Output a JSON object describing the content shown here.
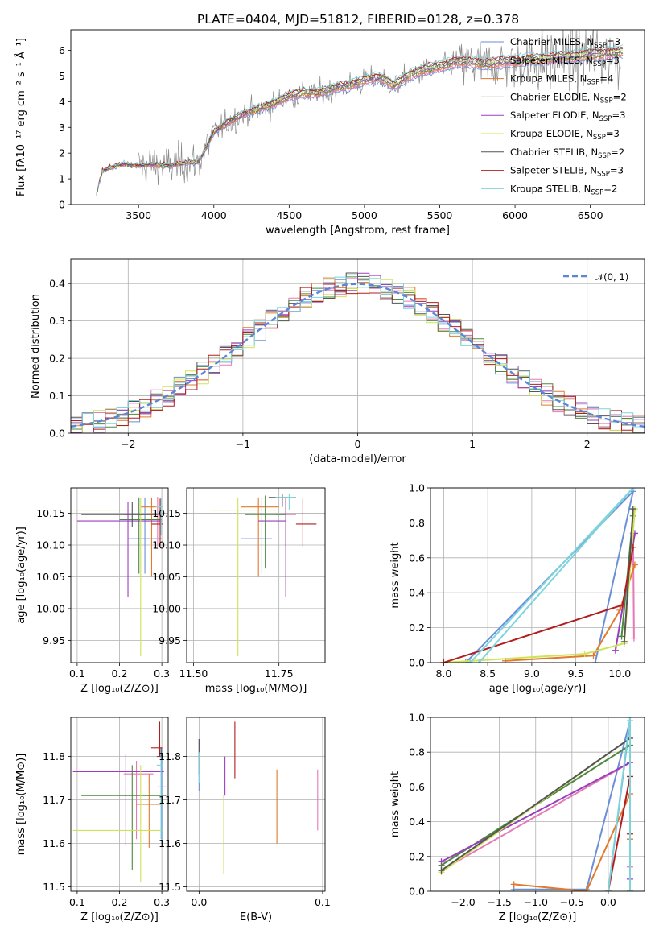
{
  "figure": {
    "title": "PLATE=0404, MJD=51812, FIBERID=0128, z=0.378"
  },
  "models": [
    {
      "key": "chabrier_miles",
      "label": "Chabrier MILES, N",
      "nssp": "3",
      "color": "#6a8fd6"
    },
    {
      "key": "salpeter_miles",
      "label": "Salpeter MILES, N",
      "nssp": "3",
      "color": "#e67ab5"
    },
    {
      "key": "kroupa_miles",
      "label": "Kroupa MILES, N",
      "nssp": "4",
      "color": "#e07a2c"
    },
    {
      "key": "chabrier_elodie",
      "label": "Chabrier ELODIE, N",
      "nssp": "2",
      "color": "#4a8a3c"
    },
    {
      "key": "salpeter_elodie",
      "label": "Salpeter ELODIE, N",
      "nssp": "3",
      "color": "#9a3ec0"
    },
    {
      "key": "kroupa_elodie",
      "label": "Kroupa ELODIE, N",
      "nssp": "3",
      "color": "#cfe356"
    },
    {
      "key": "chabrier_stelib",
      "label": "Chabrier STELIB, N",
      "nssp": "2",
      "color": "#555555"
    },
    {
      "key": "salpeter_stelib",
      "label": "Salpeter STELIB, N",
      "nssp": "3",
      "color": "#b01e1e"
    },
    {
      "key": "kroupa_stelib",
      "label": "Kroupa STELIB, N",
      "nssp": "2",
      "color": "#7fd4dc"
    }
  ],
  "legend_subscript": "SSP",
  "gaussian_label": "𝒩(0, 1)",
  "chart_data": [
    {
      "id": "spectrum",
      "type": "line",
      "xlabel": "wavelength [Angstrom, rest frame]",
      "ylabel": "Flux [fλ10⁻¹⁷ erg cm⁻² s⁻¹ Å⁻¹]",
      "xlim": [
        3050,
        6860
      ],
      "ylim": [
        0,
        6.8
      ],
      "xticks": [
        "3500",
        "4000",
        "4500",
        "5000",
        "5500",
        "6000",
        "6500"
      ],
      "yticks": [
        "0",
        "1",
        "2",
        "3",
        "4",
        "5",
        "6"
      ],
      "model_continuum": {
        "x": [
          3220,
          3260,
          3300,
          3400,
          3500,
          3600,
          3700,
          3800,
          3900,
          4000,
          4100,
          4200,
          4300,
          4400,
          4500,
          4600,
          4700,
          4800,
          4900,
          5000,
          5100,
          5200,
          5300,
          5400,
          5500,
          5600,
          5700,
          5800,
          5900,
          6000,
          6100,
          6200,
          6300,
          6400,
          6500,
          6600,
          6700
        ],
        "y": [
          0.4,
          1.3,
          1.4,
          1.55,
          1.5,
          1.55,
          1.5,
          1.6,
          1.65,
          2.8,
          3.2,
          3.5,
          3.7,
          3.9,
          4.2,
          4.3,
          4.3,
          4.5,
          4.6,
          4.8,
          4.9,
          4.6,
          5.0,
          5.2,
          5.3,
          5.5,
          5.5,
          5.4,
          5.5,
          5.5,
          5.6,
          5.6,
          5.7,
          5.7,
          5.8,
          5.8,
          5.9
        ]
      },
      "legend": "top-right",
      "grid": false
    },
    {
      "id": "residual_histogram",
      "type": "line",
      "xlabel": "(data-model)/error",
      "ylabel": "Normed distribution",
      "xlim": [
        -2.5,
        2.5
      ],
      "ylim": [
        0,
        0.465
      ],
      "xticks": [
        "−2",
        "−1",
        "0",
        "1",
        "2"
      ],
      "yticks": [
        "0.0",
        "0.1",
        "0.2",
        "0.3",
        "0.4"
      ],
      "gaussian": {
        "mean": 0,
        "sigma": 1
      },
      "bin_width": 0.1,
      "legend": "top-right",
      "grid": true
    },
    {
      "id": "age_vs_Z",
      "type": "scatter",
      "xlabel": "Z [log₁₀(Z/Z⊙)]",
      "ylabel": "age  [log₁₀(age/yr)]",
      "xlim": [
        0.085,
        0.315
      ],
      "ylim": [
        9.915,
        10.19
      ],
      "xticks": [
        "0.1",
        "0.2",
        "0.3"
      ],
      "yticks": [
        "9.95",
        "10.00",
        "10.05",
        "10.10",
        "10.15"
      ],
      "series": [
        {
          "model": "chabrier_miles",
          "x": 0.26,
          "xerr": [
            0.04,
            0.04
          ],
          "y": 10.11,
          "yerr": [
            0.055,
            0.065
          ]
        },
        {
          "model": "salpeter_miles",
          "x": 0.29,
          "xerr": [
            0.08,
            0.01
          ],
          "y": 10.148,
          "yerr": [
            0.05,
            0.028
          ]
        },
        {
          "model": "kroupa_miles",
          "x": 0.276,
          "xerr": [
            0.025,
            0.01
          ],
          "y": 10.16,
          "yerr": [
            0.11,
            0.015
          ]
        },
        {
          "model": "chabrier_elodie",
          "x": 0.246,
          "xerr": [
            0.046,
            0.054
          ],
          "y": 10.14,
          "yerr": [
            0.085,
            0.035
          ]
        },
        {
          "model": "salpeter_elodie",
          "x": 0.22,
          "xerr": [
            0.12,
            0.08
          ],
          "y": 10.138,
          "yerr": [
            0.12,
            0.03
          ]
        },
        {
          "model": "kroupa_elodie",
          "x": 0.25,
          "xerr": [
            0.16,
            0.05
          ],
          "y": 10.155,
          "yerr": [
            0.23,
            0.02
          ]
        },
        {
          "model": "chabrier_stelib",
          "x": 0.23,
          "xerr": [
            0.12,
            0.06
          ],
          "y": 10.148,
          "yerr": [
            0.02,
            0.02
          ]
        },
        {
          "model": "salpeter_stelib",
          "x": 0.296,
          "xerr": [
            0.02,
            0.006
          ],
          "y": 10.133,
          "yerr": [
            0.035,
            0.04
          ]
        },
        {
          "model": "kroupa_stelib",
          "x": 0.298,
          "xerr": [
            0.012,
            0.004
          ],
          "y": 10.16,
          "yerr": [
            0.045,
            0.015
          ]
        }
      ]
    },
    {
      "id": "age_vs_mass",
      "type": "scatter",
      "xlabel": "mass [log₁₀(M/M⊙)]",
      "ylabel": "",
      "xlim": [
        11.48,
        11.885
      ],
      "ylim": [
        9.915,
        10.19
      ],
      "xticks": [
        "11.50",
        "11.75"
      ],
      "yticks": [
        "9.95",
        "10.00",
        "10.05",
        "10.10",
        "10.15"
      ],
      "series": [
        {
          "model": "chabrier_miles",
          "x": 11.7,
          "xerr": [
            0.06,
            0.03
          ],
          "y": 10.11,
          "yerr": [
            0.055,
            0.065
          ]
        },
        {
          "model": "salpeter_miles",
          "x": 11.77,
          "xerr": [
            0.03,
            0.03
          ],
          "y": 10.148,
          "yerr": [
            0.05,
            0.028
          ]
        },
        {
          "model": "kroupa_miles",
          "x": 11.69,
          "xerr": [
            0.05,
            0.06
          ],
          "y": 10.16,
          "yerr": [
            0.11,
            0.015
          ]
        },
        {
          "model": "chabrier_elodie",
          "x": 11.71,
          "xerr": [
            0.06,
            0.06
          ],
          "y": 10.148,
          "yerr": [
            0.085,
            0.03
          ]
        },
        {
          "model": "salpeter_elodie",
          "x": 11.77,
          "xerr": [
            0.08,
            0.0
          ],
          "y": 10.138,
          "yerr": [
            0.12,
            0.035
          ]
        },
        {
          "model": "kroupa_elodie",
          "x": 11.63,
          "xerr": [
            0.08,
            0.12
          ],
          "y": 10.155,
          "yerr": [
            0.23,
            0.02
          ]
        },
        {
          "model": "chabrier_stelib",
          "x": 11.76,
          "xerr": [
            0.04,
            0.04
          ],
          "y": 10.175,
          "yerr": [
            0.015,
            0.005
          ]
        },
        {
          "model": "salpeter_stelib",
          "x": 11.82,
          "xerr": [
            0.02,
            0.04
          ],
          "y": 10.133,
          "yerr": [
            0.035,
            0.04
          ]
        },
        {
          "model": "kroupa_stelib",
          "x": 11.78,
          "xerr": [
            0.04,
            0.02
          ],
          "y": 10.175,
          "yerr": [
            0.02,
            0.005
          ]
        }
      ]
    },
    {
      "id": "mass_weight_vs_age",
      "type": "line",
      "xlabel": "age  [log₁₀(age/yr)]",
      "ylabel": "mass weight",
      "xlim": [
        7.85,
        10.28
      ],
      "ylim": [
        0,
        1
      ],
      "xticks": [
        "8.0",
        "8.5",
        "9.0",
        "9.5",
        "10.0"
      ],
      "yticks": [
        "0.0",
        "0.2",
        "0.4",
        "0.6",
        "0.8",
        "1.0"
      ],
      "series": [
        {
          "model": "chabrier_miles",
          "x": [
            9.72,
            10.15,
            8.25,
            8.3
          ],
          "y": [
            0.0,
            0.98,
            0.0,
            0.0
          ]
        },
        {
          "model": "salpeter_miles",
          "x": [
            10.16,
            10.15
          ],
          "y": [
            0.14,
            0.74
          ]
        },
        {
          "model": "kroupa_miles",
          "x": [
            8.7,
            9.7,
            10.0,
            10.17
          ],
          "y": [
            0.01,
            0.04,
            0.3,
            0.56
          ]
        },
        {
          "model": "chabrier_elodie",
          "x": [
            10.02,
            10.15
          ],
          "y": [
            0.15,
            0.84
          ]
        },
        {
          "model": "salpeter_elodie",
          "x": [
            9.95,
            10.17
          ],
          "y": [
            0.07,
            0.74
          ]
        },
        {
          "model": "kroupa_elodie",
          "x": [
            8.0,
            9.6,
            10.05,
            10.17
          ],
          "y": [
            0.0,
            0.05,
            0.11,
            0.88
          ]
        },
        {
          "model": "chabrier_stelib",
          "x": [
            10.05,
            10.15
          ],
          "y": [
            0.12,
            0.88
          ]
        },
        {
          "model": "salpeter_stelib",
          "x": [
            8.0,
            10.03,
            10.15
          ],
          "y": [
            0.0,
            0.33,
            0.66
          ]
        },
        {
          "model": "kroupa_stelib",
          "x": [
            8.3,
            10.15,
            8.4
          ],
          "y": [
            0.0,
            1.0,
            0.0
          ]
        }
      ]
    },
    {
      "id": "mass_vs_Z",
      "type": "scatter",
      "xlabel": "Z [log₁₀(Z/Z⊙)]",
      "ylabel": "mass [log₁₀(M/M⊙)]",
      "xlim": [
        0.085,
        0.315
      ],
      "ylim": [
        11.49,
        11.89
      ],
      "xticks": [
        "0.1",
        "0.2",
        "0.3"
      ],
      "yticks": [
        "11.5",
        "11.6",
        "11.7",
        "11.8"
      ],
      "series": [
        {
          "model": "chabrier_miles",
          "x": 0.3,
          "xerr": [
            0.01,
            0.01
          ],
          "y": 11.73,
          "yerr": [
            0.13,
            0.09
          ]
        },
        {
          "model": "salpeter_miles",
          "x": 0.24,
          "xerr": [
            0.03,
            0.04
          ],
          "y": 11.76,
          "yerr": [
            0.15,
            0.03
          ]
        },
        {
          "model": "kroupa_miles",
          "x": 0.27,
          "xerr": [
            0.03,
            0.03
          ],
          "y": 11.69,
          "yerr": [
            0.1,
            0.07
          ]
        },
        {
          "model": "chabrier_elodie",
          "x": 0.23,
          "xerr": [
            0.12,
            0.08
          ],
          "y": 11.71,
          "yerr": [
            0.17,
            0.07
          ]
        },
        {
          "model": "salpeter_elodie",
          "x": 0.215,
          "xerr": [
            0.125,
            0.09
          ],
          "y": 11.765,
          "yerr": [
            0.17,
            0.04
          ]
        },
        {
          "model": "kroupa_elodie",
          "x": 0.25,
          "xerr": [
            0.16,
            0.05
          ],
          "y": 11.63,
          "yerr": [
            0.12,
            0.15
          ]
        },
        {
          "model": "chabrier_stelib",
          "x": 0.298,
          "xerr": [
            0.01,
            0.004
          ],
          "y": 11.8,
          "yerr": [
            0.02,
            0.02
          ]
        },
        {
          "model": "salpeter_stelib",
          "x": 0.295,
          "xerr": [
            0.02,
            0.006
          ],
          "y": 11.82,
          "yerr": [
            0.02,
            0.06
          ]
        },
        {
          "model": "kroupa_stelib",
          "x": 0.298,
          "xerr": [
            0.01,
            0.004
          ],
          "y": 11.78,
          "yerr": [
            0.17,
            0.02
          ]
        }
      ]
    },
    {
      "id": "mass_vs_ebv",
      "type": "scatter",
      "xlabel": "E(B-V)",
      "ylabel": "",
      "xlim": [
        -0.01,
        0.102
      ],
      "ylim": [
        11.49,
        11.89
      ],
      "xticks": [
        "0.0",
        "0.1"
      ],
      "yticks": [
        "11.5",
        "11.6",
        "11.7",
        "11.8"
      ],
      "series": [
        {
          "model": "chabrier_miles",
          "x": 0.0,
          "y": 11.77,
          "yerr": [
            0.05,
            0.07
          ]
        },
        {
          "model": "salpeter_miles",
          "x": 0.096,
          "y": 11.7,
          "yerr": [
            0.07,
            0.07
          ]
        },
        {
          "model": "kroupa_miles",
          "x": 0.063,
          "y": 11.68,
          "yerr": [
            0.08,
            0.09
          ]
        },
        {
          "model": "chabrier_elodie",
          "x": 0.02,
          "y": 11.68,
          "yerr": [
            0.14,
            0.03
          ]
        },
        {
          "model": "salpeter_elodie",
          "x": 0.021,
          "y": 11.75,
          "yerr": [
            0.04,
            0.05
          ]
        },
        {
          "model": "kroupa_elodie",
          "x": 0.02,
          "y": 11.63,
          "yerr": [
            0.1,
            0.08
          ]
        },
        {
          "model": "chabrier_stelib",
          "x": 0.0,
          "y": 11.79,
          "yerr": [
            0.03,
            0.05
          ]
        },
        {
          "model": "salpeter_stelib",
          "x": 0.029,
          "y": 11.81,
          "yerr": [
            0.06,
            0.07
          ]
        },
        {
          "model": "kroupa_stelib",
          "x": 0.0,
          "y": 11.76,
          "yerr": [
            0.02,
            0.05
          ]
        }
      ]
    },
    {
      "id": "mass_weight_vs_Z",
      "type": "line",
      "xlabel": "Z [log₁₀(Z/Z⊙)]",
      "ylabel": "mass weight",
      "xlim": [
        -2.45,
        0.5
      ],
      "ylim": [
        0,
        1
      ],
      "xticks": [
        "−2.0",
        "−1.5",
        "−1.0",
        "−0.5",
        "0.0"
      ],
      "yticks": [
        "0.0",
        "0.2",
        "0.4",
        "0.6",
        "0.8",
        "1.0"
      ],
      "series": [
        {
          "model": "chabrier_miles",
          "x": [
            -1.3,
            -0.3,
            0.3,
            0.0
          ],
          "y": [
            0.01,
            0.01,
            0.98,
            0.0
          ]
        },
        {
          "model": "salpeter_miles",
          "x": [
            -2.3,
            0.3,
            0.3
          ],
          "y": [
            0.12,
            0.74,
            0.14
          ]
        },
        {
          "model": "kroupa_miles",
          "x": [
            -1.3,
            -0.3,
            0.3,
            0.3
          ],
          "y": [
            0.04,
            0.0,
            0.56,
            0.3
          ]
        },
        {
          "model": "chabrier_elodie",
          "x": [
            -2.3,
            0.3,
            0.3
          ],
          "y": [
            0.15,
            0.84,
            0.0
          ]
        },
        {
          "model": "salpeter_elodie",
          "x": [
            -2.3,
            0.3,
            0.3
          ],
          "y": [
            0.17,
            0.74,
            0.07
          ]
        },
        {
          "model": "kroupa_elodie",
          "x": [
            -2.3,
            0.3,
            0.3
          ],
          "y": [
            0.11,
            0.88,
            0.0
          ]
        },
        {
          "model": "chabrier_stelib",
          "x": [
            -2.3,
            0.3,
            0.3
          ],
          "y": [
            0.12,
            0.88,
            0.0
          ]
        },
        {
          "model": "salpeter_stelib",
          "x": [
            0.0,
            0.3,
            0.3
          ],
          "y": [
            0.0,
            0.66,
            0.33
          ]
        },
        {
          "model": "kroupa_stelib",
          "x": [
            0.0,
            0.3,
            0.3
          ],
          "y": [
            0.0,
            1.0,
            0.0
          ]
        }
      ]
    }
  ]
}
